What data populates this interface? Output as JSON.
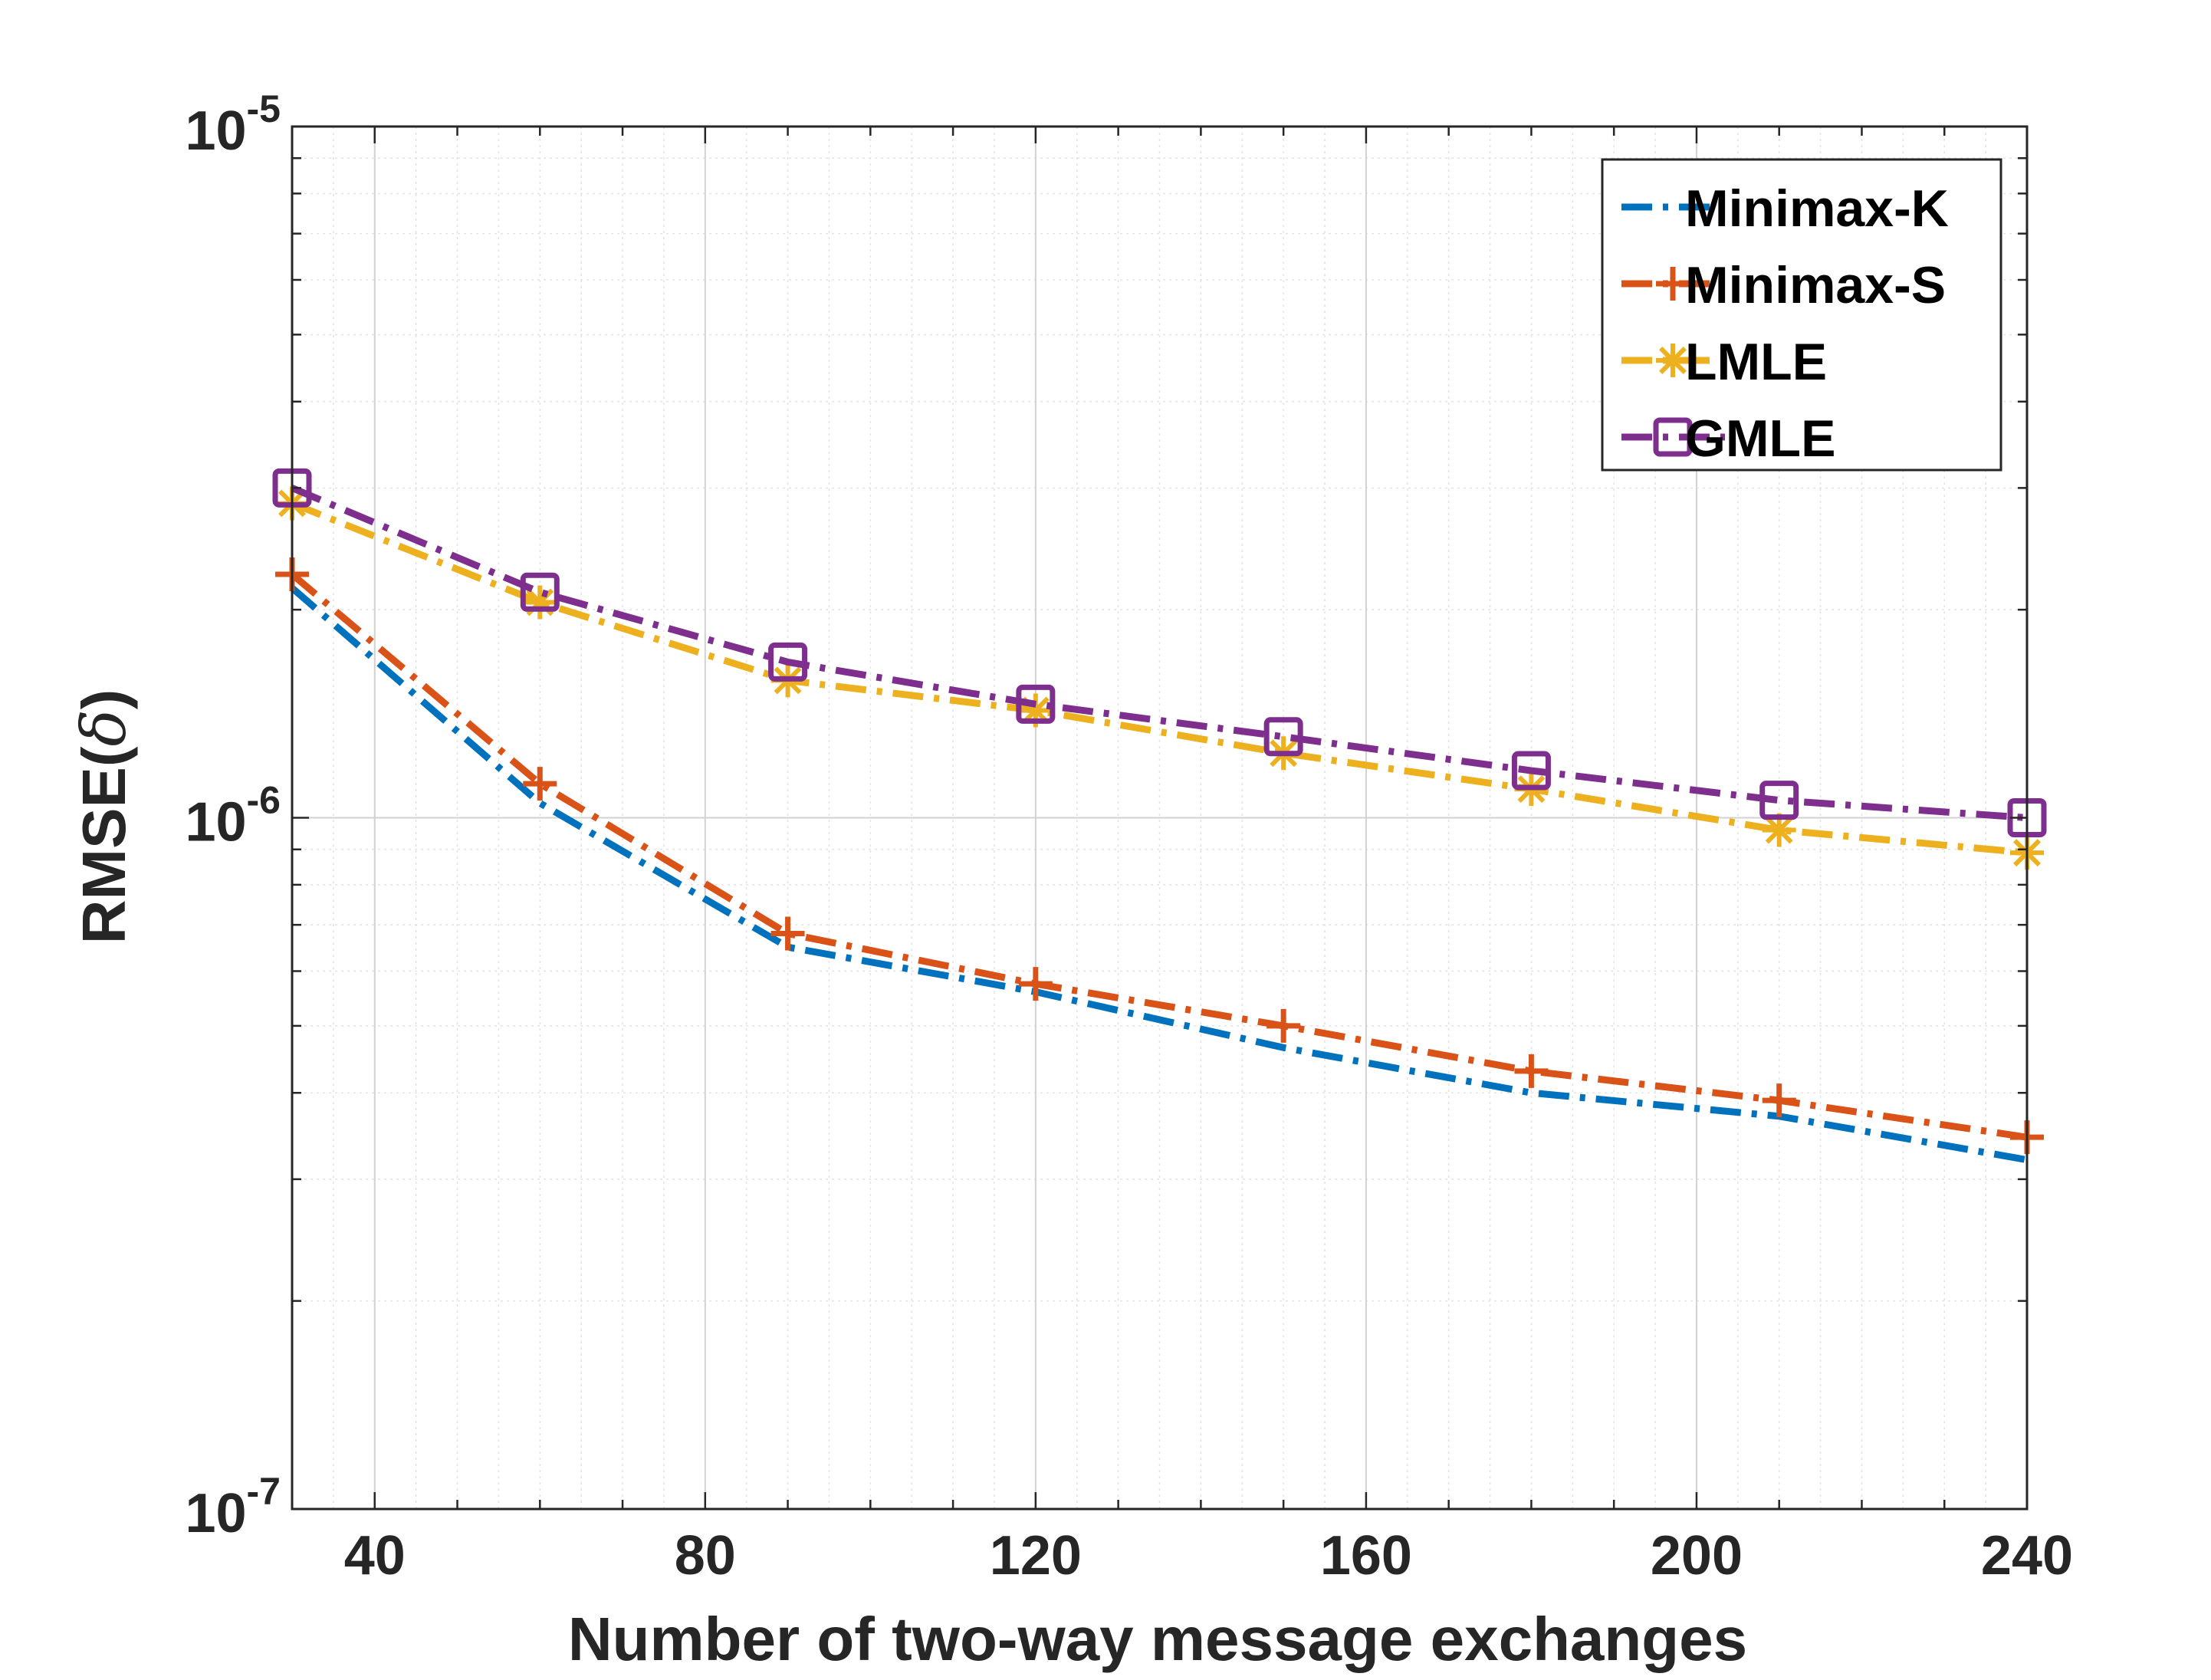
{
  "chart_data": {
    "type": "line",
    "xlabel": "Number of two-way message exchanges",
    "ylabel_main": "RMSE(",
    "ylabel_symbol": "δ",
    "ylabel_close": ")",
    "x_scale": "linear",
    "y_scale": "log",
    "xlim": [
      30,
      240
    ],
    "ylim": [
      1e-07,
      1e-05
    ],
    "x_ticks": [
      40,
      80,
      120,
      160,
      200,
      240
    ],
    "x_tick_labels": [
      "40",
      "80",
      "120",
      "160",
      "200",
      "240"
    ],
    "y_ticks": [
      {
        "value": 1e-05,
        "base": "10",
        "exp": "-5"
      },
      {
        "value": 1e-06,
        "base": "10",
        "exp": "-6"
      },
      {
        "value": 1e-07,
        "base": "10",
        "exp": "-7"
      }
    ],
    "grid": true,
    "minor_grid": true,
    "legend_position": "top-right",
    "x": [
      30,
      60,
      90,
      120,
      150,
      180,
      210,
      240
    ],
    "series": [
      {
        "name": "Minimax-K",
        "color": "#0072BD",
        "line_style": "dash-dot",
        "marker": "none",
        "values": [
          2.15e-06,
          1.05e-06,
          6.5e-07,
          5.6e-07,
          4.65e-07,
          4e-07,
          3.7e-07,
          3.2e-07
        ]
      },
      {
        "name": "Minimax-S",
        "color": "#D95319",
        "line_style": "dash-dot",
        "marker": "plus",
        "values": [
          2.25e-06,
          1.12e-06,
          6.8e-07,
          5.75e-07,
          5e-07,
          4.3e-07,
          3.9e-07,
          3.45e-07
        ]
      },
      {
        "name": "LMLE",
        "color": "#EDB120",
        "line_style": "dash-dot",
        "marker": "asterisk",
        "values": [
          2.85e-06,
          2.05e-06,
          1.58e-06,
          1.43e-06,
          1.24e-06,
          1.1e-06,
          9.6e-07,
          8.9e-07
        ]
      },
      {
        "name": "GMLE",
        "color": "#7E2F8E",
        "line_style": "dash-dot",
        "marker": "square",
        "values": [
          3e-06,
          2.12e-06,
          1.68e-06,
          1.46e-06,
          1.31e-06,
          1.17e-06,
          1.06e-06,
          1e-06
        ]
      }
    ]
  }
}
